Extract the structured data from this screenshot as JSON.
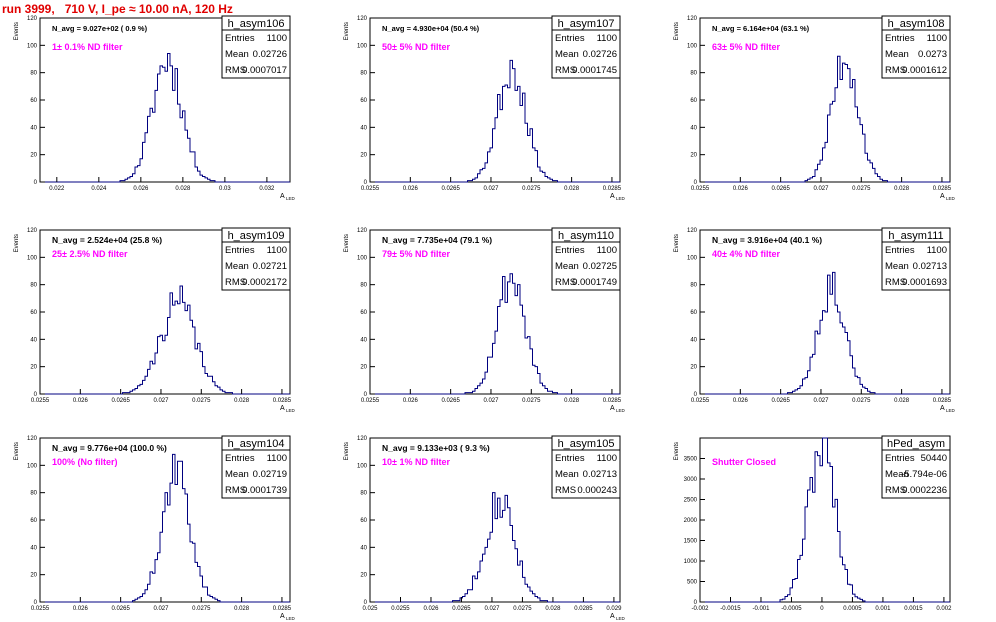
{
  "page_title": "run 3999,   710 V, I_pe ≈ 10.00 nA, 120 Hz",
  "chart_data": [
    {
      "type": "histogram",
      "hist_name": "h_asym106",
      "n_avg": "N_avg = 9.027e+02 ( 0.9 %)",
      "annotation": "1± 0.1% ND filter",
      "stats": {
        "entries": "1100",
        "mean": "0.02726",
        "rms": "0.0007017"
      },
      "ylabel": "Events",
      "xlabel": "A",
      "xlabel_sub": "LED",
      "xlim": [
        0.0212,
        0.0331
      ],
      "ylim": [
        0,
        120
      ],
      "xticks": [
        0.022,
        0.024,
        0.026,
        0.028,
        0.03,
        0.032
      ],
      "xtick_labels": [
        "0.022",
        "0.024",
        "0.026",
        "0.028",
        "0.03",
        "0.032"
      ],
      "yticks": [
        0,
        20,
        40,
        60,
        80,
        100,
        120
      ],
      "ytick_labels": [
        "0",
        "20",
        "40",
        "60",
        "80",
        "100",
        "120"
      ],
      "mean": 0.02726,
      "sigma": 0.0007017,
      "peak": 90,
      "seed": 11
    },
    {
      "type": "histogram",
      "hist_name": "h_asym107",
      "n_avg": "N_avg = 4.930e+04 (50.4 %)",
      "annotation": "50± 5% ND filter",
      "stats": {
        "entries": "1100",
        "mean": "0.02726",
        "rms": "0.0001745"
      },
      "ylabel": "Events",
      "xlabel": "A",
      "xlabel_sub": "LED",
      "xlim": [
        0.0255,
        0.0286
      ],
      "ylim": [
        0,
        120
      ],
      "xticks": [
        0.0255,
        0.026,
        0.0265,
        0.027,
        0.0275,
        0.028,
        0.0285
      ],
      "xtick_labels": [
        "0.0255",
        "0.026",
        "0.0265",
        "0.027",
        "0.0275",
        "0.028",
        "0.0285"
      ],
      "yticks": [
        0,
        20,
        40,
        60,
        80,
        100,
        120
      ],
      "ytick_labels": [
        "0",
        "20",
        "40",
        "60",
        "80",
        "100",
        "120"
      ],
      "mean": 0.02726,
      "sigma": 0.0001745,
      "peak": 85,
      "seed": 23
    },
    {
      "type": "histogram",
      "hist_name": "h_asym108",
      "n_avg": "N_avg = 6.164e+04 (63.1 %)",
      "annotation": "63± 5% ND filter",
      "stats": {
        "entries": "1100",
        "mean": "0.0273",
        "rms": "0.0001612"
      },
      "ylabel": "Events",
      "xlabel": "A",
      "xlabel_sub": "LED",
      "xlim": [
        0.0255,
        0.0286
      ],
      "ylim": [
        0,
        120
      ],
      "xticks": [
        0.0255,
        0.026,
        0.0265,
        0.027,
        0.0275,
        0.028,
        0.0285
      ],
      "xtick_labels": [
        "0.0255",
        "0.026",
        "0.0265",
        "0.027",
        "0.0275",
        "0.028",
        "0.0285"
      ],
      "yticks": [
        0,
        20,
        40,
        60,
        80,
        100,
        120
      ],
      "ytick_labels": [
        "0",
        "20",
        "40",
        "60",
        "80",
        "100",
        "120"
      ],
      "mean": 0.0273,
      "sigma": 0.0001612,
      "peak": 92,
      "seed": 37
    },
    {
      "type": "histogram",
      "hist_name": "h_asym109",
      "n_avg": "N_avg = 2.524e+04 (25.8 %)",
      "annotation": "25± 2.5% ND filter",
      "stats": {
        "entries": "1100",
        "mean": "0.02721",
        "rms": "0.0002172"
      },
      "ylabel": "Events",
      "xlabel": "A",
      "xlabel_sub": "LED",
      "xlim": [
        0.0255,
        0.0286
      ],
      "ylim": [
        0,
        120
      ],
      "xticks": [
        0.0255,
        0.026,
        0.0265,
        0.027,
        0.0275,
        0.028,
        0.0285
      ],
      "xtick_labels": [
        "0.0255",
        "0.026",
        "0.0265",
        "0.027",
        "0.0275",
        "0.028",
        "0.0285"
      ],
      "yticks": [
        0,
        20,
        40,
        60,
        80,
        100,
        120
      ],
      "ytick_labels": [
        "0",
        "20",
        "40",
        "60",
        "80",
        "100",
        "120"
      ],
      "mean": 0.02721,
      "sigma": 0.0002172,
      "peak": 67,
      "seed": 41
    },
    {
      "type": "histogram",
      "hist_name": "h_asym110",
      "n_avg": "N_avg = 7.735e+04 (79.1 %)",
      "annotation": "79± 5% ND filter",
      "stats": {
        "entries": "1100",
        "mean": "0.02725",
        "rms": "0.0001749"
      },
      "ylabel": "Events",
      "xlabel": "A",
      "xlabel_sub": "LED",
      "xlim": [
        0.0255,
        0.0286
      ],
      "ylim": [
        0,
        120
      ],
      "xticks": [
        0.0255,
        0.026,
        0.0265,
        0.027,
        0.0275,
        0.028,
        0.0285
      ],
      "xtick_labels": [
        "0.0255",
        "0.026",
        "0.0265",
        "0.027",
        "0.0275",
        "0.028",
        "0.0285"
      ],
      "yticks": [
        0,
        20,
        40,
        60,
        80,
        100,
        120
      ],
      "ytick_labels": [
        "0",
        "20",
        "40",
        "60",
        "80",
        "100",
        "120"
      ],
      "mean": 0.02725,
      "sigma": 0.0001749,
      "peak": 86,
      "seed": 53
    },
    {
      "type": "histogram",
      "hist_name": "h_asym111",
      "n_avg": "N_avg = 3.916e+04 (40.1 %)",
      "annotation": "40± 4% ND filter",
      "stats": {
        "entries": "1100",
        "mean": "0.02713",
        "rms": "0.0001693"
      },
      "ylabel": "Events",
      "xlabel": "A",
      "xlabel_sub": "LED",
      "xlim": [
        0.0255,
        0.0286
      ],
      "ylim": [
        0,
        120
      ],
      "xticks": [
        0.0255,
        0.026,
        0.0265,
        0.027,
        0.0275,
        0.028,
        0.0285
      ],
      "xtick_labels": [
        "0.0255",
        "0.026",
        "0.0265",
        "0.027",
        "0.0275",
        "0.028",
        "0.0285"
      ],
      "yticks": [
        0,
        20,
        40,
        60,
        80,
        100,
        120
      ],
      "ytick_labels": [
        "0",
        "20",
        "40",
        "60",
        "80",
        "100",
        "120"
      ],
      "mean": 0.02713,
      "sigma": 0.0001693,
      "peak": 80,
      "seed": 67
    },
    {
      "type": "histogram",
      "hist_name": "h_asym104",
      "n_avg": "N_avg = 9.776e+04 (100.0 %)",
      "annotation": "100% (No filter)",
      "stats": {
        "entries": "1100",
        "mean": "0.02719",
        "rms": "0.0001739"
      },
      "ylabel": "Events",
      "xlabel": "A",
      "xlabel_sub": "LED",
      "xlim": [
        0.0255,
        0.0286
      ],
      "ylim": [
        0,
        120
      ],
      "xticks": [
        0.0255,
        0.026,
        0.0265,
        0.027,
        0.0275,
        0.028,
        0.0285
      ],
      "xtick_labels": [
        "0.0255",
        "0.026",
        "0.0265",
        "0.027",
        "0.0275",
        "0.028",
        "0.0285"
      ],
      "yticks": [
        0,
        20,
        40,
        60,
        80,
        100,
        120
      ],
      "ytick_labels": [
        "0",
        "20",
        "40",
        "60",
        "80",
        "100",
        "120"
      ],
      "mean": 0.02719,
      "sigma": 0.0001739,
      "peak": 93,
      "seed": 71
    },
    {
      "type": "histogram",
      "hist_name": "h_asym105",
      "n_avg": "N_avg = 9.133e+03 ( 9.3 %)",
      "annotation": "10± 1% ND filter",
      "stats": {
        "entries": "1100",
        "mean": "0.02713",
        "rms": "0.000243"
      },
      "ylabel": "Events",
      "xlabel": "A",
      "xlabel_sub": "LED",
      "xlim": [
        0.025,
        0.0291
      ],
      "ylim": [
        0,
        120
      ],
      "xticks": [
        0.025,
        0.0255,
        0.026,
        0.0265,
        0.027,
        0.0275,
        0.028,
        0.0285,
        0.029
      ],
      "xtick_labels": [
        "0.025",
        "0.0255",
        "0.026",
        "0.0265",
        "0.027",
        "0.0275",
        "0.028",
        "0.0285",
        "0.029"
      ],
      "yticks": [
        0,
        20,
        40,
        60,
        80,
        100,
        120
      ],
      "ytick_labels": [
        "0",
        "20",
        "40",
        "60",
        "80",
        "100",
        "120"
      ],
      "mean": 0.02713,
      "sigma": 0.000243,
      "peak": 75,
      "seed": 83
    },
    {
      "type": "histogram",
      "hist_name": "hPed_asym",
      "n_avg": "",
      "annotation": "Shutter Closed",
      "stats": {
        "entries": "50440",
        "mean": "-5.794e-06",
        "rms": "0.0002236"
      },
      "ylabel": "Events",
      "xlabel": "",
      "xlabel_sub": "",
      "xlim": [
        -0.002,
        0.0021
      ],
      "ylim": [
        0,
        4000
      ],
      "xticks": [
        -0.002,
        -0.0015,
        -0.001,
        -0.0005,
        0,
        0.0005,
        0.001,
        0.0015,
        0.002
      ],
      "xtick_labels": [
        "-0.002",
        "-0.0015",
        "-0.001",
        "-0.0005",
        "0",
        "0.0005",
        "0.001",
        "0.0015",
        "0.002"
      ],
      "yticks": [
        0,
        500,
        1000,
        1500,
        2000,
        2500,
        3000,
        3500
      ],
      "ytick_labels": [
        "0",
        "500",
        "1000",
        "1500",
        "2000",
        "2500",
        "3000",
        "3500"
      ],
      "mean": -5.794e-06,
      "sigma": 0.0002236,
      "peak": 3800,
      "seed": 97
    }
  ]
}
